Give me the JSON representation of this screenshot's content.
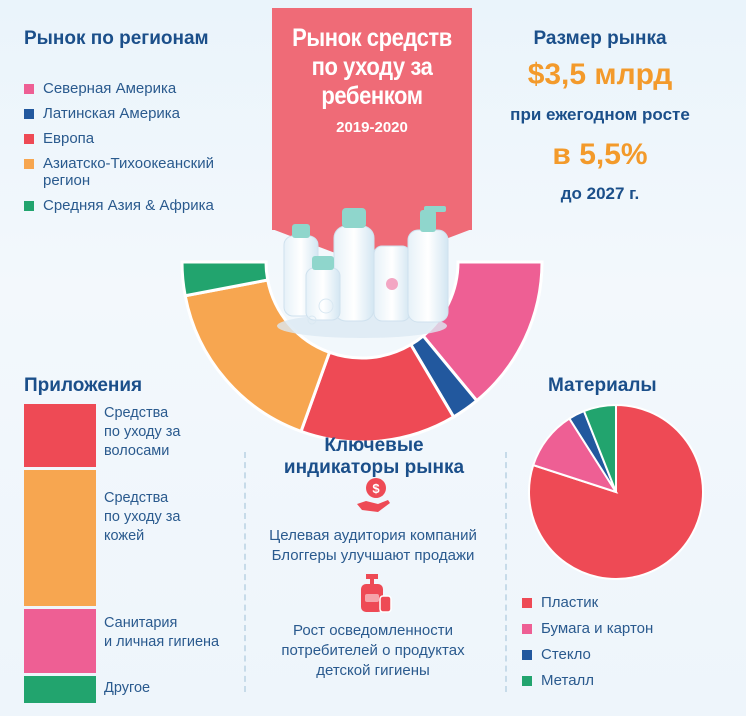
{
  "banner": {
    "title_lines": [
      "Рынок средств",
      "по уходу за",
      "ребенком"
    ],
    "years": "2019-2020"
  },
  "regions": {
    "title": "Рынок по регионам",
    "items": [
      {
        "label": "Северная Америка",
        "color": "#ee5f94"
      },
      {
        "label": "Латинская Америка",
        "color": "#22589e"
      },
      {
        "label": "Европа",
        "color": "#ee4a55"
      },
      {
        "label_lines": [
          "Азиатско-Тихоокеанский",
          "регион"
        ],
        "color": "#f7a650"
      },
      {
        "label": "Средняя Азия & Африка",
        "color": "#22a46e"
      }
    ]
  },
  "market_size": {
    "title": "Размер рынка",
    "value": "$3,5 млрд",
    "growth_text": "при ежегодном росте",
    "rate": "в 5,5%",
    "until": "до 2027 г."
  },
  "applications": {
    "title": "Приложения",
    "items": [
      {
        "label_lines": [
          "Средства",
          "по уходу за",
          "волосами"
        ],
        "color": "#ee4a55"
      },
      {
        "label_lines": [
          "Средства",
          "по уходу за",
          "кожей"
        ],
        "color": "#f7a650"
      },
      {
        "label_lines": [
          "Санитария",
          "и личная гигиена"
        ],
        "color": "#ee5f94"
      },
      {
        "label_lines": [
          "Другое"
        ],
        "color": "#22a46e"
      }
    ]
  },
  "indicators": {
    "title_lines": [
      "Ключевые",
      "индикаторы рынка"
    ],
    "item1_lines": [
      "Целевая аудитория компаний",
      "Блоггеры улучшают продажи"
    ],
    "item2_lines": [
      "Рост осведомленности",
      "потребителей о продуктах",
      "детской гигиены"
    ],
    "icon1": "hand-coin-icon",
    "icon2": "lotion-bottle-icon"
  },
  "materials": {
    "title": "Материалы",
    "items": [
      {
        "label": "Пластик",
        "color": "#ee4a55"
      },
      {
        "label": "Бумага и картон",
        "color": "#ee5f94"
      },
      {
        "label": "Стекло",
        "color": "#22589e"
      },
      {
        "label": "Металл",
        "color": "#22a46e"
      }
    ]
  },
  "chart_data": [
    {
      "type": "pie",
      "subtype": "half-donut",
      "categories": [
        "Северная Америка",
        "Латинская Америка",
        "Европа",
        "Азиатско-Тихоокеанский регион",
        "Средняя Азия & Африка"
      ],
      "values": [
        28,
        5,
        28,
        33,
        6
      ],
      "colors": [
        "#ee5f94",
        "#22589e",
        "#ee4a55",
        "#f7a650",
        "#22a46e"
      ]
    },
    {
      "type": "bar",
      "subtype": "stacked-100",
      "categories": [
        "Средства по уходу за волосами",
        "Средства по уходу за кожей",
        "Санитария и личная гигиена",
        "Другое"
      ],
      "values": [
        22,
        46,
        22,
        10
      ],
      "colors": [
        "#ee4a55",
        "#f7a650",
        "#ee5f94",
        "#22a46e"
      ]
    },
    {
      "type": "pie",
      "categories": [
        "Пластик",
        "Бумага и картон",
        "Стекло",
        "Металл"
      ],
      "values": [
        80,
        11,
        3,
        6
      ],
      "colors": [
        "#ee4a55",
        "#ee5f94",
        "#22589e",
        "#22a46e"
      ]
    }
  ]
}
